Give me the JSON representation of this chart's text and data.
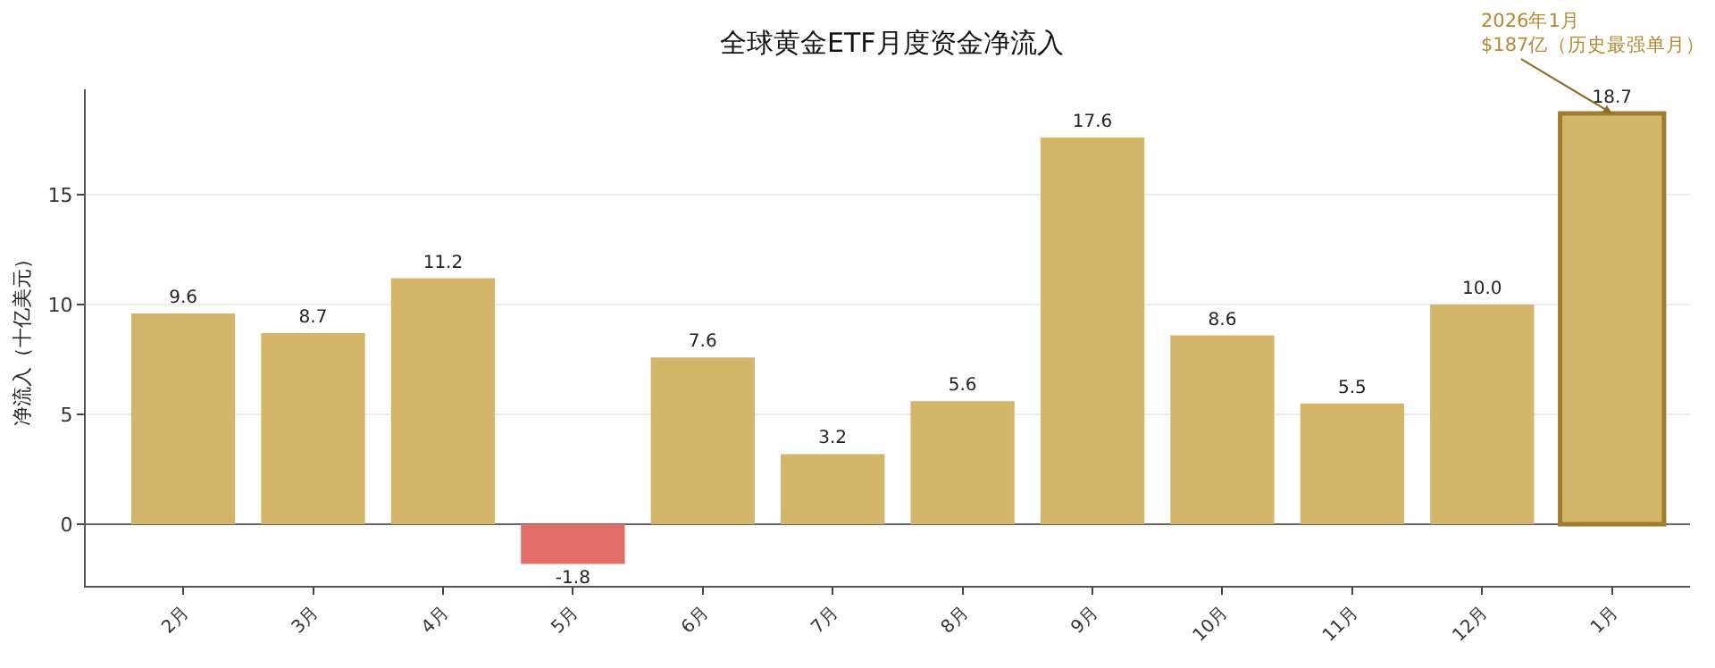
{
  "chart_data": {
    "type": "bar",
    "title": "全球黄金ETF月度资金净流入",
    "ylabel": "净流入（十亿美元）",
    "categories": [
      "2月",
      "3月",
      "4月",
      "5月",
      "6月",
      "7月",
      "8月",
      "9月",
      "10月",
      "11月",
      "12月",
      "1月"
    ],
    "values": [
      9.6,
      8.7,
      11.2,
      -1.8,
      7.6,
      3.2,
      5.6,
      17.6,
      8.6,
      5.5,
      10.0,
      18.7
    ],
    "colors": [
      "#d4b66a",
      "#d4b66a",
      "#d4b66a",
      "#e06e66",
      "#d4b66a",
      "#d4b66a",
      "#d4b66a",
      "#d4b66a",
      "#d4b66a",
      "#d4b66a",
      "#d4b66a",
      "#d4b66a"
    ],
    "value_labels": [
      "9.6",
      "8.7",
      "11.2",
      "-1.8",
      "7.6",
      "3.2",
      "5.6",
      "17.6",
      "8.6",
      "5.5",
      "10.0",
      "18.7"
    ],
    "ylim": [
      -2.8,
      19.8
    ],
    "yticks": [
      0,
      5,
      10,
      15
    ],
    "grid": "y",
    "legend": false,
    "annotations": [
      {
        "text": "2026年1月\n$187亿（历史最强单月）",
        "x": "1月",
        "y": 18.7
      }
    ]
  }
}
